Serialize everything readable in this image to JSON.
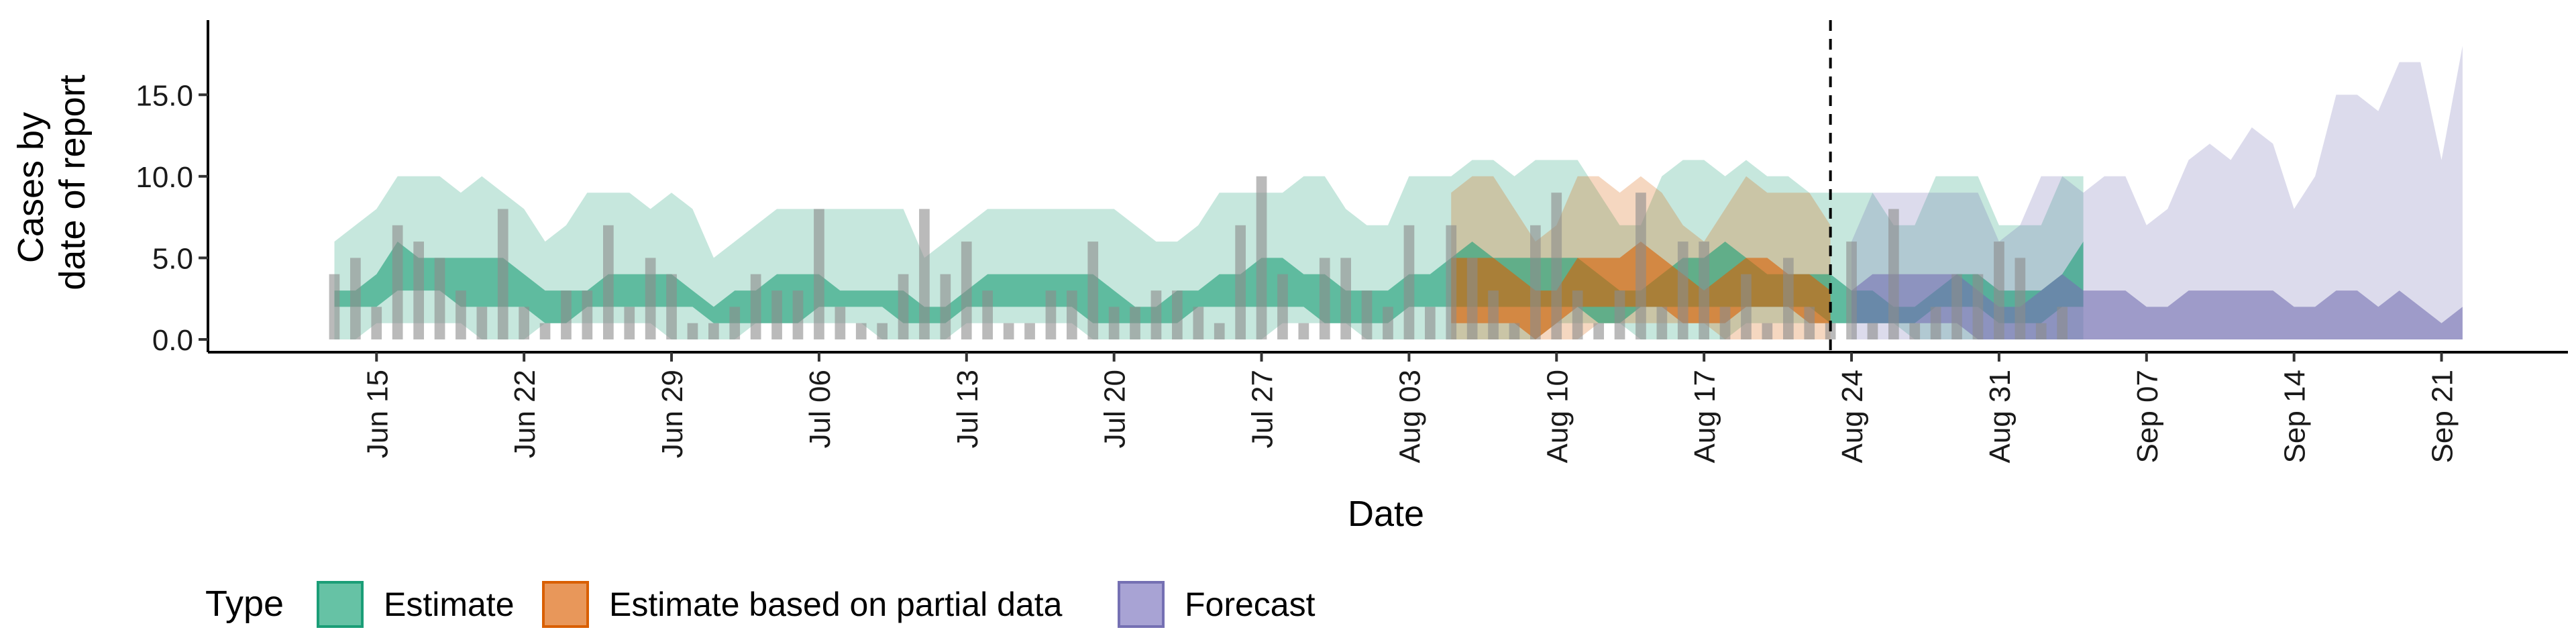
{
  "chart_data": {
    "type": "area",
    "xlabel": "Date",
    "ylabel": [
      "Cases by",
      "date of report"
    ],
    "ylim": [
      0,
      19
    ],
    "y_ticks": [
      0,
      5,
      10,
      15
    ],
    "y_tick_labels": [
      "0.0",
      "5.0",
      "10.0",
      "15.0"
    ],
    "x_range": [
      "2021-06-07",
      "2021-09-27"
    ],
    "x_ticks": [
      "2021-06-15",
      "2021-06-22",
      "2021-06-29",
      "2021-07-06",
      "2021-07-13",
      "2021-07-20",
      "2021-07-27",
      "2021-08-03",
      "2021-08-10",
      "2021-08-17",
      "2021-08-24",
      "2021-08-31",
      "2021-09-07",
      "2021-09-14",
      "2021-09-21"
    ],
    "x_tick_labels": [
      "Jun 15",
      "Jun 22",
      "Jun 29",
      "Jul 06",
      "Jul 13",
      "Jul 20",
      "Jul 27",
      "Aug 03",
      "Aug 10",
      "Aug 17",
      "Aug 24",
      "Aug 31",
      "Sep 07",
      "Sep 14",
      "Sep 21"
    ],
    "forecast_line_date": "2021-08-23",
    "grid": false,
    "legend": {
      "title": "Type",
      "position": "bottom",
      "entries": [
        {
          "label": "Estimate",
          "fill": "#66c2a5",
          "stroke": "#1b9e77"
        },
        {
          "label": "Estimate based on partial data",
          "fill": "#e8975a",
          "stroke": "#d95f02"
        },
        {
          "label": "Forecast",
          "fill": "#a8a3d4",
          "stroke": "#7570b3"
        }
      ]
    },
    "colors": {
      "estimate": "#1b9e77",
      "partial": "#d95f02",
      "forecast": "#7570b3",
      "bars": "#8c8c8c"
    },
    "reported_cases": [
      [
        "2021-06-13",
        4
      ],
      [
        "2021-06-14",
        5
      ],
      [
        "2021-06-15",
        2
      ],
      [
        "2021-06-16",
        7
      ],
      [
        "2021-06-17",
        6
      ],
      [
        "2021-06-18",
        5
      ],
      [
        "2021-06-19",
        3
      ],
      [
        "2021-06-20",
        2
      ],
      [
        "2021-06-21",
        8
      ],
      [
        "2021-06-22",
        2
      ],
      [
        "2021-06-23",
        1
      ],
      [
        "2021-06-24",
        3
      ],
      [
        "2021-06-25",
        3
      ],
      [
        "2021-06-26",
        7
      ],
      [
        "2021-06-27",
        2
      ],
      [
        "2021-06-28",
        5
      ],
      [
        "2021-06-29",
        4
      ],
      [
        "2021-06-30",
        1
      ],
      [
        "2021-07-01",
        1
      ],
      [
        "2021-07-02",
        2
      ],
      [
        "2021-07-03",
        4
      ],
      [
        "2021-07-04",
        3
      ],
      [
        "2021-07-05",
        3
      ],
      [
        "2021-07-06",
        8
      ],
      [
        "2021-07-07",
        2
      ],
      [
        "2021-07-08",
        1
      ],
      [
        "2021-07-09",
        1
      ],
      [
        "2021-07-10",
        4
      ],
      [
        "2021-07-11",
        8
      ],
      [
        "2021-07-12",
        4
      ],
      [
        "2021-07-13",
        6
      ],
      [
        "2021-07-14",
        3
      ],
      [
        "2021-07-15",
        1
      ],
      [
        "2021-07-16",
        1
      ],
      [
        "2021-07-17",
        3
      ],
      [
        "2021-07-18",
        3
      ],
      [
        "2021-07-19",
        6
      ],
      [
        "2021-07-20",
        2
      ],
      [
        "2021-07-21",
        2
      ],
      [
        "2021-07-22",
        3
      ],
      [
        "2021-07-23",
        3
      ],
      [
        "2021-07-24",
        2
      ],
      [
        "2021-07-25",
        1
      ],
      [
        "2021-07-26",
        7
      ],
      [
        "2021-07-27",
        10
      ],
      [
        "2021-07-28",
        4
      ],
      [
        "2021-07-29",
        1
      ],
      [
        "2021-07-30",
        5
      ],
      [
        "2021-07-31",
        5
      ],
      [
        "2021-08-01",
        3
      ],
      [
        "2021-08-02",
        2
      ],
      [
        "2021-08-03",
        7
      ],
      [
        "2021-08-04",
        2
      ],
      [
        "2021-08-05",
        7
      ],
      [
        "2021-08-06",
        5
      ],
      [
        "2021-08-07",
        3
      ],
      [
        "2021-08-08",
        1
      ],
      [
        "2021-08-09",
        7
      ],
      [
        "2021-08-10",
        9
      ],
      [
        "2021-08-11",
        3
      ],
      [
        "2021-08-12",
        1
      ],
      [
        "2021-08-13",
        3
      ],
      [
        "2021-08-14",
        9
      ],
      [
        "2021-08-15",
        2
      ],
      [
        "2021-08-16",
        6
      ],
      [
        "2021-08-17",
        6
      ],
      [
        "2021-08-18",
        2
      ],
      [
        "2021-08-19",
        4
      ],
      [
        "2021-08-20",
        1
      ],
      [
        "2021-08-21",
        5
      ],
      [
        "2021-08-22",
        2
      ],
      [
        "2021-08-23",
        1
      ],
      [
        "2021-08-24",
        6
      ],
      [
        "2021-08-25",
        1
      ],
      [
        "2021-08-26",
        8
      ],
      [
        "2021-08-27",
        1
      ],
      [
        "2021-08-28",
        2
      ],
      [
        "2021-08-29",
        4
      ],
      [
        "2021-08-30",
        4
      ],
      [
        "2021-08-31",
        6
      ],
      [
        "2021-09-01",
        5
      ],
      [
        "2021-09-02",
        1
      ],
      [
        "2021-09-03",
        2
      ]
    ],
    "series": [
      {
        "name": "Estimate",
        "x": [
          "2021-06-13",
          "2021-06-14",
          "2021-06-15",
          "2021-06-16",
          "2021-06-17",
          "2021-06-18",
          "2021-06-19",
          "2021-06-20",
          "2021-06-21",
          "2021-06-22",
          "2021-06-23",
          "2021-06-24",
          "2021-06-25",
          "2021-06-26",
          "2021-06-27",
          "2021-06-28",
          "2021-06-29",
          "2021-06-30",
          "2021-07-01",
          "2021-07-02",
          "2021-07-03",
          "2021-07-04",
          "2021-07-05",
          "2021-07-06",
          "2021-07-07",
          "2021-07-08",
          "2021-07-09",
          "2021-07-10",
          "2021-07-11",
          "2021-07-12",
          "2021-07-13",
          "2021-07-14",
          "2021-07-15",
          "2021-07-16",
          "2021-07-17",
          "2021-07-18",
          "2021-07-19",
          "2021-07-20",
          "2021-07-21",
          "2021-07-22",
          "2021-07-23",
          "2021-07-24",
          "2021-07-25",
          "2021-07-26",
          "2021-07-27",
          "2021-07-28",
          "2021-07-29",
          "2021-07-30",
          "2021-07-31",
          "2021-08-01",
          "2021-08-02",
          "2021-08-03",
          "2021-08-04",
          "2021-08-05",
          "2021-08-06",
          "2021-08-07",
          "2021-08-08",
          "2021-08-09",
          "2021-08-10",
          "2021-08-11",
          "2021-08-12",
          "2021-08-13",
          "2021-08-14",
          "2021-08-15",
          "2021-08-16",
          "2021-08-17",
          "2021-08-18",
          "2021-08-19",
          "2021-08-20",
          "2021-08-21",
          "2021-08-22",
          "2021-08-23",
          "2021-08-24",
          "2021-08-25",
          "2021-08-26",
          "2021-08-27",
          "2021-08-28",
          "2021-08-29",
          "2021-08-30",
          "2021-08-31",
          "2021-09-01",
          "2021-09-02",
          "2021-09-03",
          "2021-09-04"
        ],
        "lower90": [
          0,
          0,
          1,
          1,
          1,
          1,
          1,
          0,
          0,
          0,
          1,
          1,
          1,
          1,
          1,
          1,
          0,
          0,
          0,
          0,
          1,
          1,
          1,
          1,
          1,
          1,
          0,
          0,
          0,
          0,
          1,
          1,
          1,
          1,
          1,
          1,
          0,
          0,
          0,
          0,
          0,
          0,
          0,
          0,
          0,
          1,
          1,
          1,
          1,
          0,
          0,
          0,
          0,
          0,
          0,
          0,
          0,
          0,
          1,
          1,
          1,
          1,
          0,
          0,
          0,
          0,
          0,
          1,
          1,
          1,
          1,
          1,
          1,
          1,
          1,
          0,
          0,
          0,
          0,
          0,
          0,
          0,
          0,
          0
        ],
        "upper90": [
          6,
          7,
          8,
          10,
          10,
          10,
          9,
          10,
          9,
          8,
          6,
          7,
          9,
          9,
          9,
          8,
          9,
          8,
          5,
          6,
          7,
          8,
          8,
          8,
          8,
          8,
          8,
          8,
          5,
          6,
          7,
          8,
          8,
          8,
          8,
          8,
          8,
          8,
          7,
          6,
          6,
          7,
          9,
          9,
          9,
          9,
          10,
          10,
          8,
          7,
          7,
          10,
          10,
          10,
          11,
          11,
          10,
          11,
          11,
          11,
          9,
          7,
          7,
          10,
          11,
          11,
          10,
          11,
          10,
          10,
          9,
          9,
          9,
          9,
          7,
          7,
          10,
          10,
          10,
          7,
          7,
          7,
          10,
          10
        ],
        "lower50": [
          2,
          2,
          2,
          3,
          3,
          3,
          2,
          2,
          2,
          2,
          1,
          1,
          2,
          2,
          2,
          2,
          2,
          2,
          1,
          1,
          1,
          1,
          1,
          2,
          2,
          2,
          2,
          1,
          1,
          1,
          2,
          2,
          2,
          2,
          2,
          2,
          1,
          1,
          1,
          1,
          1,
          2,
          2,
          2,
          2,
          2,
          2,
          1,
          1,
          1,
          1,
          2,
          2,
          2,
          2,
          2,
          2,
          2,
          2,
          2,
          1,
          1,
          2,
          2,
          2,
          2,
          2,
          2,
          2,
          2,
          2,
          1,
          1,
          1,
          1,
          1,
          2,
          2,
          2,
          1,
          1,
          1,
          2,
          2
        ],
        "upper50": [
          3,
          3,
          4,
          6,
          5,
          5,
          5,
          5,
          5,
          4,
          3,
          3,
          3,
          4,
          4,
          4,
          4,
          3,
          2,
          3,
          3,
          4,
          4,
          4,
          3,
          3,
          3,
          3,
          2,
          2,
          3,
          4,
          4,
          4,
          4,
          4,
          4,
          3,
          2,
          2,
          3,
          3,
          4,
          4,
          5,
          5,
          4,
          4,
          3,
          3,
          3,
          4,
          4,
          5,
          6,
          5,
          5,
          5,
          5,
          5,
          4,
          3,
          3,
          4,
          5,
          5,
          6,
          5,
          4,
          4,
          4,
          4,
          3,
          3,
          2,
          2,
          3,
          4,
          4,
          3,
          3,
          3,
          4,
          6
        ]
      },
      {
        "name": "Estimate based on partial data",
        "x": [
          "2021-08-05",
          "2021-08-06",
          "2021-08-07",
          "2021-08-08",
          "2021-08-09",
          "2021-08-10",
          "2021-08-11",
          "2021-08-12",
          "2021-08-13",
          "2021-08-14",
          "2021-08-15",
          "2021-08-16",
          "2021-08-17",
          "2021-08-18",
          "2021-08-19",
          "2021-08-20",
          "2021-08-21",
          "2021-08-22",
          "2021-08-23"
        ],
        "lower90": [
          0,
          0,
          0,
          0,
          0,
          0,
          0,
          1,
          1,
          1,
          1,
          1,
          1,
          0,
          0,
          0,
          0,
          0,
          0
        ],
        "upper90": [
          9,
          10,
          10,
          8,
          6,
          7,
          10,
          10,
          9,
          10,
          9,
          7,
          6,
          8,
          10,
          9,
          9,
          9,
          7
        ],
        "lower50": [
          1,
          1,
          1,
          1,
          0,
          1,
          2,
          2,
          2,
          2,
          2,
          1,
          1,
          1,
          2,
          2,
          2,
          1,
          1
        ],
        "upper50": [
          5,
          5,
          5,
          4,
          3,
          3,
          5,
          5,
          5,
          6,
          5,
          4,
          3,
          4,
          5,
          5,
          4,
          4,
          3
        ]
      },
      {
        "name": "Forecast",
        "x": [
          "2021-08-24",
          "2021-08-25",
          "2021-08-26",
          "2021-08-27",
          "2021-08-28",
          "2021-08-29",
          "2021-08-30",
          "2021-08-31",
          "2021-09-01",
          "2021-09-02",
          "2021-09-03",
          "2021-09-04",
          "2021-09-05",
          "2021-09-06",
          "2021-09-07",
          "2021-09-08",
          "2021-09-09",
          "2021-09-10",
          "2021-09-11",
          "2021-09-12",
          "2021-09-13",
          "2021-09-14",
          "2021-09-15",
          "2021-09-16",
          "2021-09-17",
          "2021-09-18",
          "2021-09-19",
          "2021-09-20",
          "2021-09-21",
          "2021-09-22"
        ],
        "lower90": [
          0,
          0,
          0,
          0,
          0,
          0,
          0,
          0,
          0,
          0,
          0,
          0,
          0,
          0,
          0,
          0,
          0,
          0,
          0,
          0,
          0,
          0,
          0,
          0,
          0,
          0,
          0,
          0,
          0,
          0
        ],
        "upper90": [
          6,
          9,
          9,
          9,
          9,
          9,
          9,
          6,
          7,
          10,
          10,
          9,
          10,
          10,
          7,
          8,
          11,
          12,
          11,
          13,
          12,
          8,
          10,
          15,
          15,
          14,
          17,
          17,
          11,
          18
        ],
        "lower50": [
          1,
          1,
          1,
          1,
          1,
          1,
          0,
          0,
          0,
          0,
          0,
          0,
          0,
          0,
          0,
          0,
          0,
          0,
          0,
          0,
          0,
          0,
          0,
          0,
          0,
          0,
          0,
          0,
          0,
          0
        ],
        "upper50": [
          3,
          4,
          4,
          4,
          4,
          4,
          3,
          2,
          2,
          3,
          4,
          3,
          3,
          3,
          2,
          2,
          3,
          3,
          3,
          3,
          3,
          2,
          2,
          3,
          3,
          2,
          3,
          2,
          1,
          2
        ]
      }
    ]
  }
}
